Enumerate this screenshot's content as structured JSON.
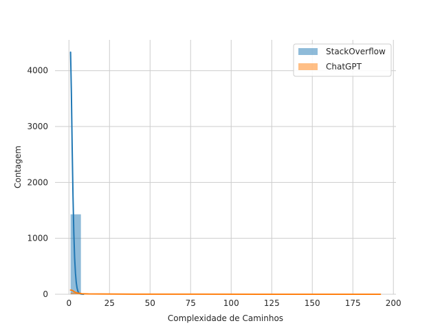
{
  "chart_data": {
    "type": "histogram",
    "xlabel": "Complexidade de Caminhos",
    "ylabel": "Contagem",
    "xlim": [
      -8.6,
      201.6
    ],
    "ylim": [
      0,
      4550
    ],
    "xticks": [
      0,
      25,
      50,
      75,
      100,
      125,
      150,
      175,
      200
    ],
    "yticks": [
      0,
      1000,
      2000,
      3000,
      4000
    ],
    "grid": true,
    "legend_position": "top-right",
    "series": [
      {
        "name": "StackOverflow",
        "color": "#1f77b4",
        "bin_edges": [
          1,
          7.375
        ],
        "counts": [
          1430
        ],
        "kde": [
          [
            1,
            4330
          ],
          [
            1.5,
            3600
          ],
          [
            2,
            2600
          ],
          [
            2.5,
            1750
          ],
          [
            3,
            1100
          ],
          [
            3.5,
            650
          ],
          [
            4,
            380
          ],
          [
            4.5,
            210
          ],
          [
            5,
            110
          ],
          [
            5.5,
            55
          ],
          [
            6,
            25
          ],
          [
            7,
            8
          ],
          [
            8,
            2
          ],
          [
            9,
            0
          ]
        ]
      },
      {
        "name": "ChatGPT",
        "color": "#ff7f0e",
        "bin_edges": [
          1,
          7.375,
          13.75,
          20.125,
          26.5,
          32.875,
          39.25,
          45.625,
          52,
          58.375,
          64.75,
          71.125,
          77.5,
          83.875,
          90.25,
          96.625,
          103,
          109.375,
          115.75,
          122.125,
          128.5,
          134.875,
          141.25,
          147.625,
          154,
          160.375,
          166.75,
          173.125,
          179.5,
          185.875,
          192.25
        ],
        "counts": [
          30,
          12,
          8,
          4,
          3,
          2,
          2,
          1,
          1,
          1,
          1,
          1,
          0,
          0,
          0,
          0,
          0,
          0,
          0,
          0,
          0,
          0,
          0,
          0,
          0,
          0,
          0,
          0,
          0,
          1
        ],
        "kde": [
          [
            1,
            75
          ],
          [
            2,
            70
          ],
          [
            3,
            50
          ],
          [
            4,
            32
          ],
          [
            6,
            18
          ],
          [
            8,
            10
          ],
          [
            12,
            6
          ],
          [
            20,
            4
          ],
          [
            40,
            2
          ],
          [
            80,
            1
          ],
          [
            120,
            0.5
          ],
          [
            192,
            0.5
          ]
        ]
      }
    ]
  }
}
